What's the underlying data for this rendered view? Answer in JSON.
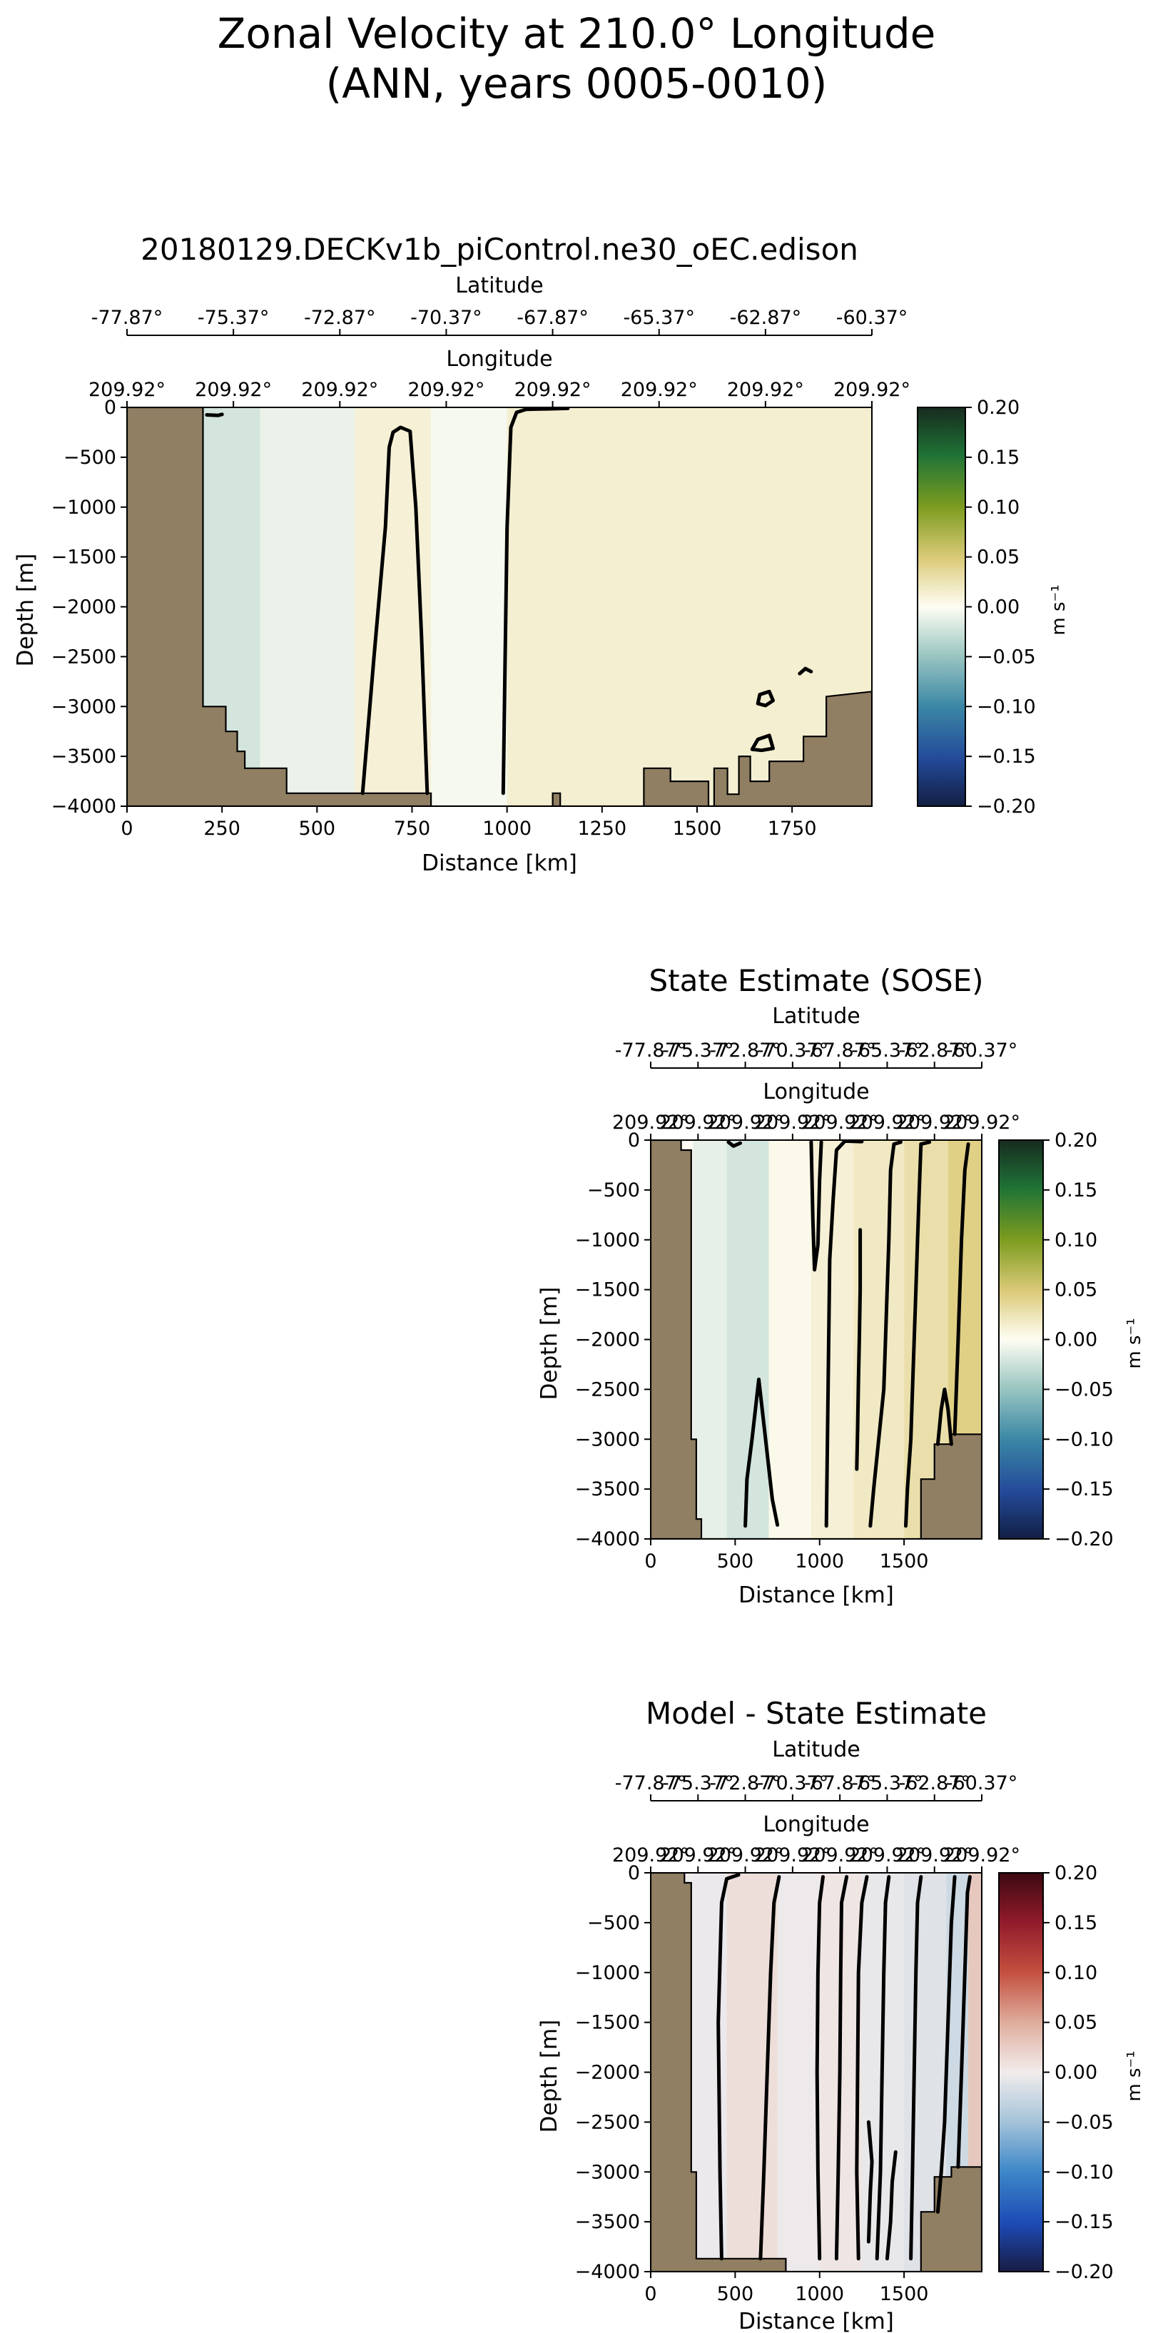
{
  "suptitle": {
    "line1": "Zonal Velocity at 210.0° Longitude",
    "line2": "(ANN, years 0005-0010)"
  },
  "chart_data": [
    {
      "id": "model",
      "type": "heatmap",
      "title": "20180129.DECKv1b_piControl.ne30_oEC.edison",
      "xlabel": "Distance [km]",
      "ylabel": "Depth [m]",
      "xlim": [
        0,
        1960
      ],
      "ylim": [
        -4000,
        0
      ],
      "x_ticks": [
        0,
        250,
        500,
        750,
        1000,
        1250,
        1500,
        1750
      ],
      "y_ticks": [
        0,
        -500,
        -1000,
        -1500,
        -2000,
        -2500,
        -3000,
        -3500,
        -4000
      ],
      "lat_label": "Latitude",
      "lat_ticks": [
        "-77.87°",
        "-75.37°",
        "-72.87°",
        "-70.37°",
        "-67.87°",
        "-65.37°",
        "-62.87°",
        "-60.37°"
      ],
      "lon_label": "Longitude",
      "lon_ticks": [
        "209.92°",
        "209.92°",
        "209.92°",
        "209.92°",
        "209.92°",
        "209.92°",
        "209.92°",
        "209.92°"
      ],
      "colorbar": {
        "label": "m s⁻¹",
        "cmap": "delta",
        "ticks": [
          "0.20",
          "0.15",
          "0.10",
          "0.05",
          "0.00",
          "−0.05",
          "−0.10",
          "−0.15",
          "−0.20"
        ]
      },
      "field_bands": [
        {
          "x0": 200,
          "x1": 350,
          "value": -0.022
        },
        {
          "x0": 350,
          "x1": 600,
          "value": -0.01
        },
        {
          "x0": 600,
          "x1": 800,
          "value": 0.012
        },
        {
          "x0": 800,
          "x1": 1000,
          "value": -0.004
        },
        {
          "x0": 1000,
          "x1": 1960,
          "value": 0.014
        }
      ],
      "bathymetry": [
        [
          0,
          -4000
        ],
        [
          0,
          0
        ],
        [
          200,
          0
        ],
        [
          200,
          -3000
        ],
        [
          260,
          -3000
        ],
        [
          260,
          -3250
        ],
        [
          290,
          -3250
        ],
        [
          290,
          -3450
        ],
        [
          310,
          -3450
        ],
        [
          310,
          -3620
        ],
        [
          420,
          -3620
        ],
        [
          420,
          -3870
        ],
        [
          800,
          -3870
        ],
        [
          800,
          -4000
        ],
        [
          1120,
          -4000
        ],
        [
          1120,
          -3870
        ],
        [
          1140,
          -3870
        ],
        [
          1140,
          -4000
        ],
        [
          1360,
          -4000
        ],
        [
          1360,
          -3620
        ],
        [
          1430,
          -3620
        ],
        [
          1430,
          -3750
        ],
        [
          1530,
          -3750
        ],
        [
          1530,
          -4000
        ],
        [
          1545,
          -4000
        ],
        [
          1545,
          -3620
        ],
        [
          1580,
          -3620
        ],
        [
          1580,
          -3880
        ],
        [
          1610,
          -3880
        ],
        [
          1610,
          -3500
        ],
        [
          1640,
          -3500
        ],
        [
          1640,
          -3750
        ],
        [
          1690,
          -3750
        ],
        [
          1690,
          -3550
        ],
        [
          1780,
          -3550
        ],
        [
          1780,
          -3300
        ],
        [
          1840,
          -3300
        ],
        [
          1840,
          -2900
        ],
        [
          1960,
          -2850
        ],
        [
          1960,
          -4000
        ]
      ],
      "zero_contours": [
        [
          [
            620,
            -3870
          ],
          [
            650,
            -2500
          ],
          [
            680,
            -1200
          ],
          [
            690,
            -400
          ],
          [
            700,
            -250
          ],
          [
            720,
            -200
          ],
          [
            745,
            -240
          ],
          [
            760,
            -1000
          ],
          [
            775,
            -2300
          ],
          [
            790,
            -3870
          ]
        ],
        [
          [
            990,
            -3870
          ],
          [
            995,
            -2500
          ],
          [
            1000,
            -1200
          ],
          [
            1010,
            -200
          ],
          [
            1025,
            -50
          ],
          [
            1050,
            -20
          ],
          [
            1160,
            -10
          ]
        ],
        [
          [
            210,
            -75
          ],
          [
            240,
            -80
          ],
          [
            250,
            -70
          ]
        ],
        [
          [
            1660,
            -2970
          ],
          [
            1665,
            -2880
          ],
          [
            1690,
            -2850
          ],
          [
            1700,
            -2940
          ],
          [
            1680,
            -2990
          ],
          [
            1660,
            -2970
          ]
        ],
        [
          [
            1645,
            -3430
          ],
          [
            1660,
            -3330
          ],
          [
            1690,
            -3290
          ],
          [
            1700,
            -3420
          ],
          [
            1670,
            -3440
          ],
          [
            1645,
            -3430
          ]
        ],
        [
          [
            1770,
            -2670
          ],
          [
            1785,
            -2620
          ],
          [
            1800,
            -2650
          ]
        ]
      ]
    },
    {
      "id": "obs",
      "type": "heatmap",
      "title": "State Estimate (SOSE)",
      "xlabel": "Distance [km]",
      "ylabel": "Depth [m]",
      "xlim": [
        0,
        1960
      ],
      "ylim": [
        -4000,
        0
      ],
      "x_ticks": [
        0,
        500,
        1000,
        1500
      ],
      "y_ticks": [
        0,
        -500,
        -1000,
        -1500,
        -2000,
        -2500,
        -3000,
        -3500,
        -4000
      ],
      "lat_label": "Latitude",
      "lat_ticks": [
        "-77.87°",
        "-75.37°",
        "-72.87°",
        "-70.37°",
        "-67.87°",
        "-65.37°",
        "-62.87°",
        "-60.37°"
      ],
      "lon_label": "Longitude",
      "lon_ticks": [
        "209.92°",
        "209.92°",
        "209.92°",
        "209.92°",
        "209.92°",
        "209.92°",
        "209.92°",
        "209.92°"
      ],
      "colorbar": {
        "label": "m s⁻¹",
        "cmap": "delta",
        "ticks": [
          "0.20",
          "0.15",
          "0.10",
          "0.05",
          "0.00",
          "−0.05",
          "−0.10",
          "−0.15",
          "−0.20"
        ]
      },
      "field_bands": [
        {
          "x0": 250,
          "x1": 450,
          "value": -0.012
        },
        {
          "x0": 450,
          "x1": 700,
          "value": -0.022
        },
        {
          "x0": 700,
          "x1": 950,
          "value": 0.004
        },
        {
          "x0": 950,
          "x1": 1200,
          "value": 0.012
        },
        {
          "x0": 1200,
          "x1": 1500,
          "value": 0.02
        },
        {
          "x0": 1500,
          "x1": 1760,
          "value": 0.03
        },
        {
          "x0": 1760,
          "x1": 1960,
          "value": 0.045
        }
      ],
      "bathymetry": [
        [
          0,
          -4000
        ],
        [
          0,
          0
        ],
        [
          180,
          0
        ],
        [
          180,
          -100
        ],
        [
          240,
          -100
        ],
        [
          240,
          -3000
        ],
        [
          270,
          -3000
        ],
        [
          270,
          -3800
        ],
        [
          300,
          -3800
        ],
        [
          300,
          -4000
        ],
        [
          1600,
          -4000
        ],
        [
          1600,
          -3400
        ],
        [
          1680,
          -3400
        ],
        [
          1680,
          -3050
        ],
        [
          1780,
          -3050
        ],
        [
          1780,
          -2950
        ],
        [
          1960,
          -2950
        ],
        [
          1960,
          -4000
        ]
      ],
      "zero_contours": [
        [
          [
            560,
            -3870
          ],
          [
            570,
            -3400
          ],
          [
            600,
            -3000
          ],
          [
            640,
            -2400
          ],
          [
            680,
            -3000
          ],
          [
            720,
            -3600
          ],
          [
            750,
            -3860
          ]
        ],
        [
          [
            1040,
            -3870
          ],
          [
            1050,
            -2500
          ],
          [
            1060,
            -1200
          ],
          [
            1080,
            -600
          ],
          [
            1100,
            -100
          ],
          [
            1150,
            -10
          ],
          [
            1250,
            -15
          ]
        ],
        [
          [
            950,
            -20
          ],
          [
            960,
            -800
          ],
          [
            970,
            -1300
          ],
          [
            990,
            -1050
          ],
          [
            1000,
            -400
          ],
          [
            1010,
            -20
          ]
        ],
        [
          [
            1300,
            -3870
          ],
          [
            1320,
            -3500
          ],
          [
            1350,
            -3000
          ],
          [
            1380,
            -2500
          ],
          [
            1390,
            -2000
          ],
          [
            1400,
            -1500
          ],
          [
            1410,
            -1000
          ],
          [
            1420,
            -300
          ],
          [
            1440,
            -40
          ],
          [
            1480,
            -20
          ]
        ],
        [
          [
            1220,
            -3300
          ],
          [
            1225,
            -2900
          ],
          [
            1230,
            -2400
          ],
          [
            1235,
            -2000
          ],
          [
            1240,
            -1500
          ],
          [
            1240,
            -900
          ]
        ],
        [
          [
            1510,
            -3870
          ],
          [
            1520,
            -3500
          ],
          [
            1540,
            -3000
          ],
          [
            1550,
            -2500
          ],
          [
            1560,
            -2000
          ],
          [
            1570,
            -1500
          ],
          [
            1580,
            -1000
          ],
          [
            1590,
            -500
          ],
          [
            1600,
            -40
          ],
          [
            1650,
            -20
          ]
        ],
        [
          [
            1700,
            -3050
          ],
          [
            1720,
            -2700
          ],
          [
            1740,
            -2500
          ],
          [
            1760,
            -2700
          ],
          [
            1780,
            -3050
          ]
        ],
        [
          [
            1800,
            -2950
          ],
          [
            1820,
            -2000
          ],
          [
            1840,
            -1000
          ],
          [
            1860,
            -300
          ],
          [
            1880,
            -40
          ]
        ],
        [
          [
            460,
            -20
          ],
          [
            490,
            -60
          ],
          [
            530,
            -30
          ]
        ]
      ]
    },
    {
      "id": "diff",
      "type": "heatmap",
      "title": "Model - State Estimate",
      "xlabel": "Distance [km]",
      "ylabel": "Depth [m]",
      "xlim": [
        0,
        1960
      ],
      "ylim": [
        -4000,
        0
      ],
      "x_ticks": [
        0,
        500,
        1000,
        1500
      ],
      "y_ticks": [
        0,
        -500,
        -1000,
        -1500,
        -2000,
        -2500,
        -3000,
        -3500,
        -4000
      ],
      "lat_label": "Latitude",
      "lat_ticks": [
        "-77.87°",
        "-75.37°",
        "-72.87°",
        "-70.37°",
        "-67.87°",
        "-65.37°",
        "-62.87°",
        "-60.37°"
      ],
      "lon_label": "Longitude",
      "lon_ticks": [
        "209.92°",
        "209.92°",
        "209.92°",
        "209.92°",
        "209.92°",
        "209.92°",
        "209.92°",
        "209.92°"
      ],
      "colorbar": {
        "label": "m s⁻¹",
        "cmap": "balance",
        "ticks": [
          "0.20",
          "0.15",
          "0.10",
          "0.05",
          "0.00",
          "−0.05",
          "−0.10",
          "−0.15",
          "−0.20"
        ]
      },
      "field_bands": [
        {
          "x0": 250,
          "x1": 450,
          "value": -0.004
        },
        {
          "x0": 450,
          "x1": 750,
          "value": 0.012
        },
        {
          "x0": 750,
          "x1": 1000,
          "value": -0.002
        },
        {
          "x0": 1000,
          "x1": 1250,
          "value": 0.006
        },
        {
          "x0": 1250,
          "x1": 1500,
          "value": -0.006
        },
        {
          "x0": 1500,
          "x1": 1750,
          "value": -0.012
        },
        {
          "x0": 1750,
          "x1": 1880,
          "value": -0.025
        },
        {
          "x0": 1880,
          "x1": 1960,
          "value": 0.03
        }
      ],
      "bathymetry": [
        [
          0,
          -4000
        ],
        [
          0,
          0
        ],
        [
          200,
          0
        ],
        [
          200,
          -100
        ],
        [
          240,
          -100
        ],
        [
          240,
          -3000
        ],
        [
          270,
          -3000
        ],
        [
          270,
          -3870
        ],
        [
          800,
          -3870
        ],
        [
          800,
          -4000
        ],
        [
          1600,
          -4000
        ],
        [
          1600,
          -3400
        ],
        [
          1680,
          -3400
        ],
        [
          1680,
          -3050
        ],
        [
          1780,
          -3050
        ],
        [
          1780,
          -2950
        ],
        [
          1960,
          -2950
        ],
        [
          1960,
          -4000
        ]
      ],
      "zero_contours": [
        [
          [
            420,
            -3870
          ],
          [
            410,
            -3000
          ],
          [
            400,
            -1500
          ],
          [
            420,
            -300
          ],
          [
            450,
            -60
          ],
          [
            520,
            -20
          ]
        ],
        [
          [
            650,
            -3870
          ],
          [
            670,
            -3000
          ],
          [
            690,
            -2000
          ],
          [
            710,
            -1000
          ],
          [
            730,
            -300
          ],
          [
            760,
            -40
          ]
        ],
        [
          [
            1000,
            -3870
          ],
          [
            990,
            -3000
          ],
          [
            985,
            -2000
          ],
          [
            990,
            -1000
          ],
          [
            1000,
            -300
          ],
          [
            1020,
            -40
          ]
        ],
        [
          [
            1100,
            -3870
          ],
          [
            1110,
            -3000
          ],
          [
            1120,
            -2000
          ],
          [
            1125,
            -1000
          ],
          [
            1130,
            -300
          ],
          [
            1160,
            -40
          ]
        ],
        [
          [
            1230,
            -3870
          ],
          [
            1220,
            -3000
          ],
          [
            1225,
            -2000
          ],
          [
            1230,
            -1000
          ],
          [
            1250,
            -300
          ],
          [
            1280,
            -40
          ]
        ],
        [
          [
            1290,
            -3700
          ],
          [
            1300,
            -3200
          ],
          [
            1310,
            -2900
          ],
          [
            1290,
            -2500
          ]
        ],
        [
          [
            1340,
            -3870
          ],
          [
            1360,
            -3000
          ],
          [
            1370,
            -2000
          ],
          [
            1380,
            -1000
          ],
          [
            1390,
            -300
          ],
          [
            1410,
            -40
          ]
        ],
        [
          [
            1400,
            -3870
          ],
          [
            1420,
            -3500
          ],
          [
            1430,
            -3100
          ],
          [
            1450,
            -2800
          ]
        ],
        [
          [
            1540,
            -3870
          ],
          [
            1550,
            -3000
          ],
          [
            1560,
            -2000
          ],
          [
            1570,
            -1000
          ],
          [
            1580,
            -300
          ],
          [
            1600,
            -40
          ]
        ],
        [
          [
            1700,
            -3400
          ],
          [
            1720,
            -3000
          ],
          [
            1740,
            -2500
          ],
          [
            1760,
            -1500
          ],
          [
            1780,
            -500
          ],
          [
            1800,
            -40
          ]
        ],
        [
          [
            1820,
            -2950
          ],
          [
            1840,
            -2000
          ],
          [
            1860,
            -1000
          ],
          [
            1875,
            -200
          ],
          [
            1890,
            -40
          ]
        ]
      ]
    }
  ]
}
